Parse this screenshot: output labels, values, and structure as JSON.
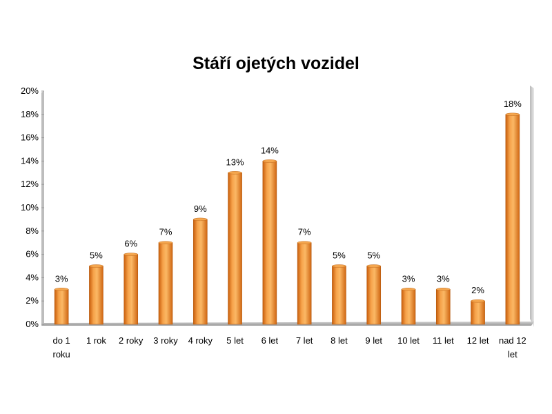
{
  "chart_data": {
    "type": "bar",
    "title": "Stáří ojetých vozidel",
    "xlabel": "",
    "ylabel": "",
    "categories": [
      [
        "do 1",
        "roku"
      ],
      [
        "1 rok"
      ],
      [
        "2 roky"
      ],
      [
        "3 roky"
      ],
      [
        "4 roky"
      ],
      [
        "5 let"
      ],
      [
        "6 let"
      ],
      [
        "7 let"
      ],
      [
        "8 let"
      ],
      [
        "9 let"
      ],
      [
        "10 let"
      ],
      [
        "11 let"
      ],
      [
        "12 let"
      ],
      [
        "nad 12",
        "let"
      ]
    ],
    "values": [
      3,
      5,
      6,
      7,
      9,
      13,
      14,
      7,
      5,
      5,
      3,
      3,
      2,
      18
    ],
    "data_labels": [
      "3%",
      "5%",
      "6%",
      "7%",
      "9%",
      "13%",
      "14%",
      "7%",
      "5%",
      "5%",
      "3%",
      "3%",
      "2%",
      "18%"
    ],
    "ylim": [
      0,
      20
    ],
    "yticks": [
      "0%",
      "2%",
      "4%",
      "6%",
      "8%",
      "10%",
      "12%",
      "14%",
      "16%",
      "18%",
      "20%"
    ],
    "grid": false,
    "legend": "none",
    "bar_color": "#f0902a"
  }
}
